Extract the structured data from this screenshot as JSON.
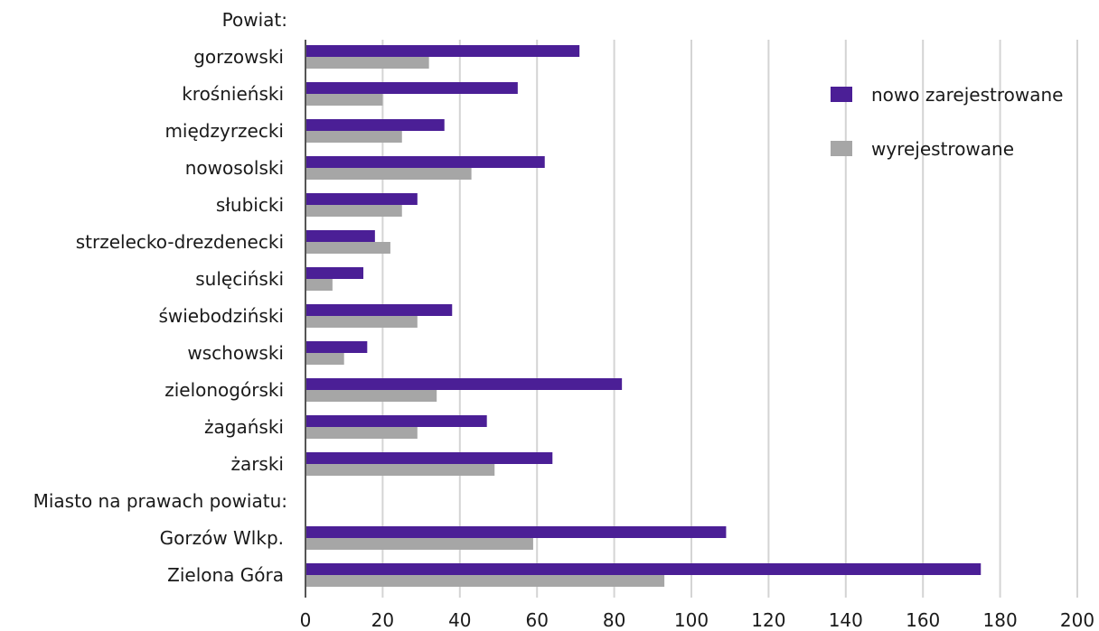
{
  "chart_data": {
    "type": "bar",
    "orientation": "horizontal",
    "rows": [
      {
        "label": "Powiat:",
        "kind": "header"
      },
      {
        "label": "gorzowski",
        "kind": "category"
      },
      {
        "label": "krośnieński",
        "kind": "category"
      },
      {
        "label": "międzyrzecki",
        "kind": "category"
      },
      {
        "label": "nowosolski",
        "kind": "category"
      },
      {
        "label": "słubicki",
        "kind": "category"
      },
      {
        "label": "strzelecko-drezdenecki",
        "kind": "category"
      },
      {
        "label": "sulęciński",
        "kind": "category"
      },
      {
        "label": "świebodziński",
        "kind": "category"
      },
      {
        "label": "wschowski",
        "kind": "category"
      },
      {
        "label": "zielonogórski",
        "kind": "category"
      },
      {
        "label": "żagański",
        "kind": "category"
      },
      {
        "label": "żarski",
        "kind": "category"
      },
      {
        "label": "Miasto na prawach powiatu:",
        "kind": "header"
      },
      {
        "label": "Gorzów Wlkp.",
        "kind": "category"
      },
      {
        "label": "Zielona Góra",
        "kind": "category"
      }
    ],
    "categories": [
      "gorzowski",
      "krośnieński",
      "międzyrzecki",
      "nowosolski",
      "słubicki",
      "strzelecko-drezdenecki",
      "sulęciński",
      "świebodziński",
      "wschowski",
      "zielonogórski",
      "żagański",
      "żarski",
      "Gorzów Wlkp.",
      "Zielona Góra"
    ],
    "series": [
      {
        "name": "nowo zarejestrowane",
        "color": "#4b1f96",
        "values": [
          71,
          55,
          36,
          62,
          29,
          18,
          15,
          38,
          16,
          82,
          47,
          64,
          109,
          175
        ]
      },
      {
        "name": "wyrejestrowane",
        "color": "#a6a6a6",
        "values": [
          32,
          20,
          25,
          43,
          25,
          22,
          7,
          29,
          10,
          34,
          29,
          49,
          59,
          93
        ]
      }
    ],
    "xlim": [
      0,
      200
    ],
    "xticks": [
      0,
      20,
      40,
      60,
      80,
      100,
      120,
      140,
      160,
      180,
      200
    ],
    "grid": true,
    "legend": "top-right",
    "title": "",
    "xlabel": "",
    "ylabel": ""
  }
}
